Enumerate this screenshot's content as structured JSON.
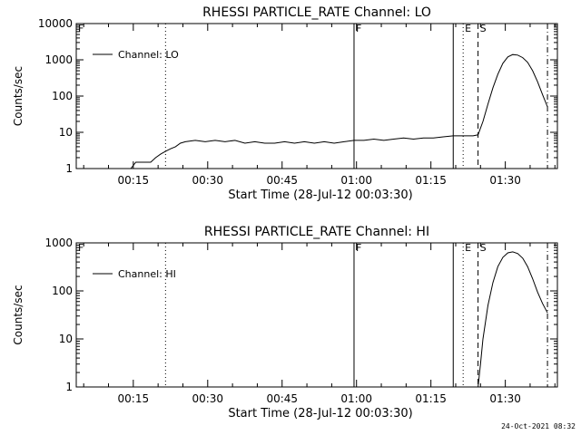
{
  "footer": {
    "timestamp": "24-Oct-2021 08:32"
  },
  "chart_data": [
    {
      "type": "line",
      "title": "RHESSI PARTICLE_RATE Channel: LO",
      "xlabel": "Start Time (28-Jul-12 00:03:30)",
      "ylabel": "Counts/sec",
      "y_scale": "log",
      "xlim": [
        "00:03:30",
        "01:40:30"
      ],
      "ylim": [
        1,
        10000
      ],
      "x_ticks": [
        "00:15",
        "00:30",
        "00:45",
        "01:00",
        "01:15",
        "01:30"
      ],
      "y_ticks": [
        "1",
        "10",
        "100",
        "1000",
        "10000"
      ],
      "legend": {
        "label": "Channel: LO",
        "position": "top-left"
      },
      "markers": [
        {
          "label": "F",
          "time": "00:03:30",
          "style": "none"
        },
        {
          "label": "",
          "time": "00:21:30",
          "style": "dotted"
        },
        {
          "label": "F",
          "time": "00:59:30",
          "style": "solid"
        },
        {
          "label": "",
          "time": "01:19:30",
          "style": "solid"
        },
        {
          "label": "E",
          "time": "01:21:30",
          "style": "dotted"
        },
        {
          "label": "S",
          "time": "01:24:30",
          "style": "dashed"
        },
        {
          "label": "",
          "time": "01:38:30",
          "style": "dashdot"
        }
      ],
      "series": [
        {
          "x": [
            "00:03:30",
            "00:04:30",
            "00:05:30",
            "00:06:30",
            "00:07:30",
            "00:08:30",
            "00:09:30",
            "00:10:30",
            "00:11:30",
            "00:12:30",
            "00:13:30",
            "00:14:30",
            "00:15:30",
            "00:16:30",
            "00:17:30",
            "00:18:30",
            "00:19:30",
            "00:20:30",
            "00:21:30",
            "00:22:30",
            "00:23:30",
            "00:24:30",
            "00:25:30",
            "00:27:30",
            "00:29:30",
            "00:31:30",
            "00:33:30",
            "00:35:30",
            "00:37:30",
            "00:39:30",
            "00:41:30",
            "00:43:30",
            "00:45:30",
            "00:47:30",
            "00:49:30",
            "00:51:30",
            "00:53:30",
            "00:55:30",
            "00:57:30",
            "00:59:30",
            "01:01:30",
            "01:03:30",
            "01:05:30",
            "01:07:30",
            "01:09:30",
            "01:11:30",
            "01:13:30",
            "01:15:30",
            "01:17:30",
            "01:19:30",
            "01:21:30",
            "01:23:30",
            "01:24:30",
            "01:25:30",
            "01:26:30",
            "01:27:30",
            "01:28:30",
            "01:29:30",
            "01:30:30",
            "01:31:30",
            "01:32:30",
            "01:33:30",
            "01:34:30",
            "01:35:30",
            "01:36:30",
            "01:37:30",
            "01:38:30"
          ],
          "values": [
            1,
            1,
            1,
            1,
            1,
            1,
            1,
            1,
            1,
            1,
            1,
            1,
            1.5,
            1.5,
            1.5,
            1.5,
            2,
            2.5,
            3,
            3.5,
            4,
            5,
            5.5,
            6,
            5.5,
            6,
            5.5,
            6,
            5,
            5.5,
            5,
            5,
            5.5,
            5,
            5.5,
            5,
            5.5,
            5,
            5.5,
            6,
            6,
            6.5,
            6,
            6.5,
            7,
            6.5,
            7,
            7,
            7.5,
            8,
            8,
            8,
            8.5,
            20,
            60,
            170,
            400,
            800,
            1200,
            1400,
            1350,
            1150,
            850,
            500,
            250,
            110,
            50
          ]
        }
      ]
    },
    {
      "type": "line",
      "title": "RHESSI PARTICLE_RATE Channel: HI",
      "xlabel": "Start Time (28-Jul-12 00:03:30)",
      "ylabel": "Counts/sec",
      "y_scale": "log",
      "xlim": [
        "00:03:30",
        "01:40:30"
      ],
      "ylim": [
        1,
        1000
      ],
      "x_ticks": [
        "00:15",
        "00:30",
        "00:45",
        "01:00",
        "01:15",
        "01:30"
      ],
      "y_ticks": [
        "1",
        "10",
        "100",
        "1000"
      ],
      "legend": {
        "label": "Channel: HI",
        "position": "top-left"
      },
      "markers": [
        {
          "label": "F",
          "time": "00:03:30",
          "style": "none"
        },
        {
          "label": "",
          "time": "00:21:30",
          "style": "dotted"
        },
        {
          "label": "F",
          "time": "00:59:30",
          "style": "solid"
        },
        {
          "label": "",
          "time": "01:19:30",
          "style": "solid"
        },
        {
          "label": "E",
          "time": "01:21:30",
          "style": "dotted"
        },
        {
          "label": "S",
          "time": "01:24:30",
          "style": "dashed"
        },
        {
          "label": "",
          "time": "01:38:30",
          "style": "dashdot"
        }
      ],
      "series": [
        {
          "x": [
            "01:24:30",
            "01:25:00",
            "01:25:30",
            "01:26:30",
            "01:27:30",
            "01:28:30",
            "01:29:30",
            "01:30:30",
            "01:31:30",
            "01:32:30",
            "01:33:30",
            "01:34:30",
            "01:35:30",
            "01:36:30",
            "01:37:30",
            "01:38:30"
          ],
          "values": [
            1,
            3,
            10,
            50,
            150,
            320,
            500,
            620,
            650,
            600,
            480,
            320,
            180,
            95,
            55,
            35
          ]
        }
      ]
    }
  ]
}
